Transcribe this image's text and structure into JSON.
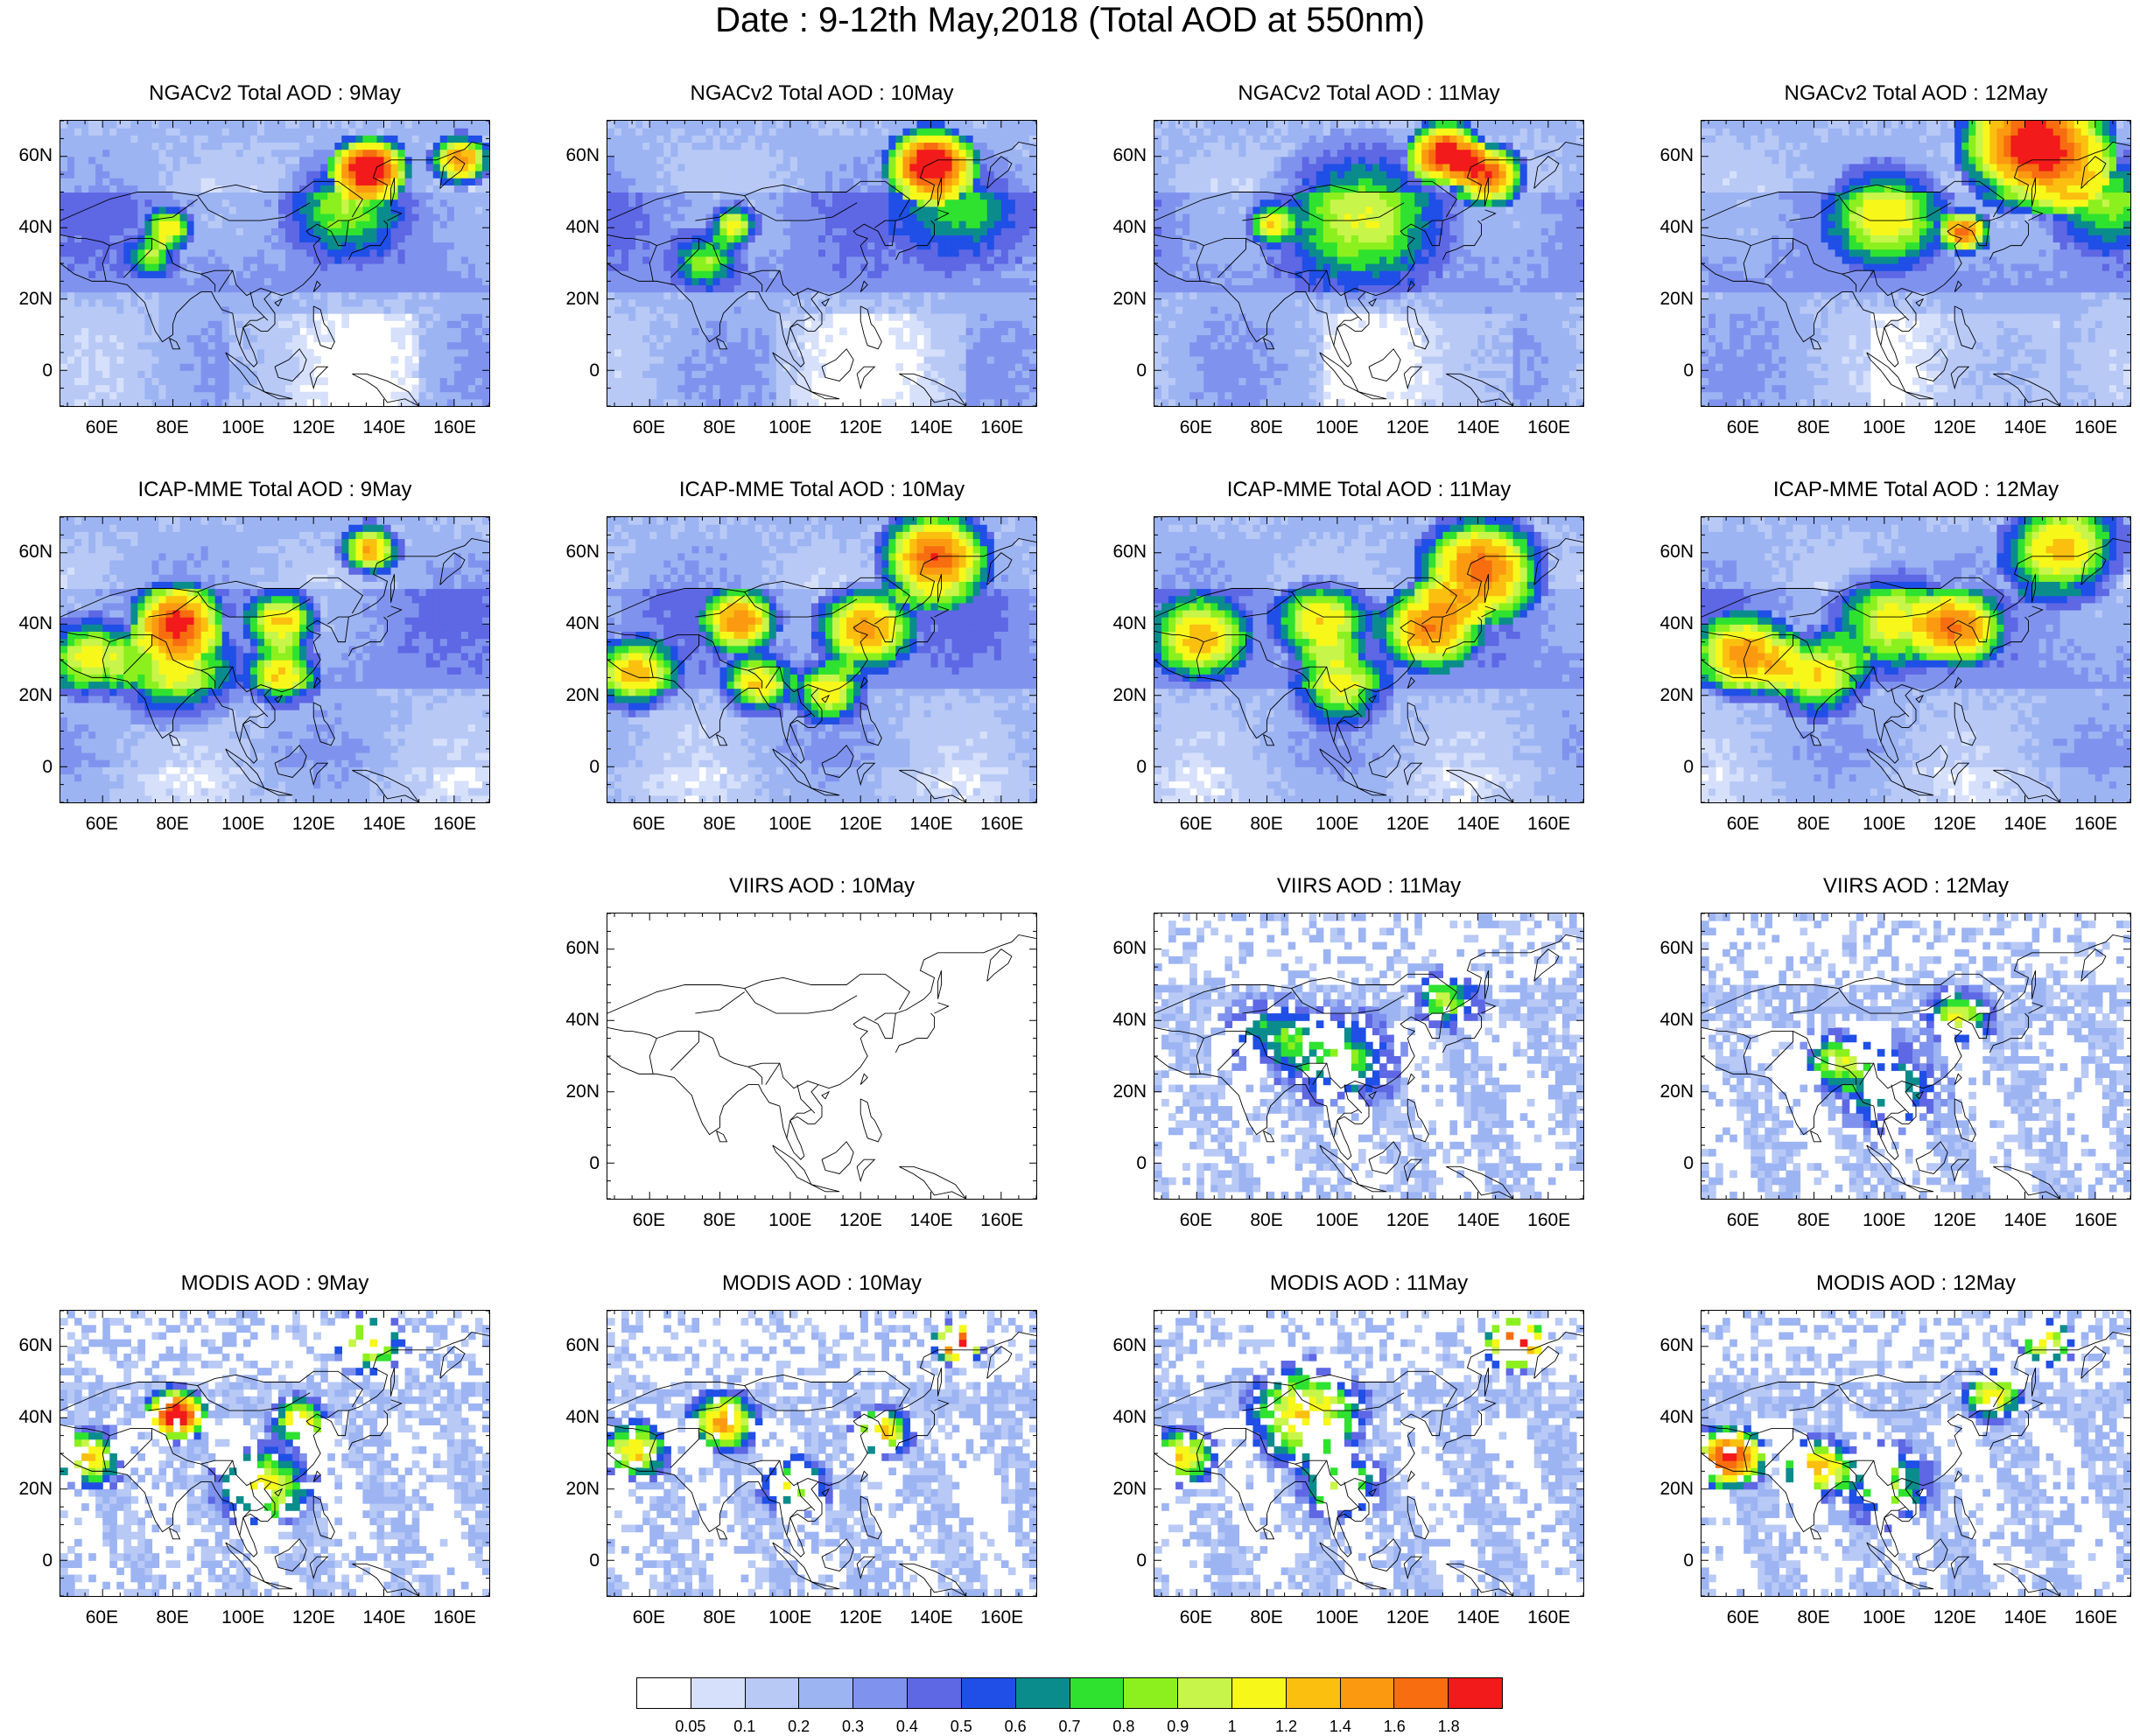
{
  "title": "Date : 9-12th May,2018 (Total AOD at 550nm)",
  "lat_ticks": [
    "60N",
    "40N",
    "20N",
    "0"
  ],
  "lon_ticks": [
    "60E",
    "80E",
    "100E",
    "120E",
    "140E",
    "160E"
  ],
  "map_extent": {
    "lon": [
      48,
      170
    ],
    "lat": [
      -10,
      70
    ]
  },
  "panels": [
    {
      "row": 0,
      "col": 0,
      "title": "NGACv2 Total AOD : 9May",
      "mode": "model",
      "variant": 0
    },
    {
      "row": 0,
      "col": 1,
      "title": "NGACv2 Total AOD : 10May",
      "mode": "model",
      "variant": 1
    },
    {
      "row": 0,
      "col": 2,
      "title": "NGACv2 Total AOD : 11May",
      "mode": "model",
      "variant": 2
    },
    {
      "row": 0,
      "col": 3,
      "title": "NGACv2 Total AOD : 12May",
      "mode": "model",
      "variant": 3
    },
    {
      "row": 1,
      "col": 0,
      "title": "ICAP-MME Total AOD : 9May",
      "mode": "model",
      "variant": 4
    },
    {
      "row": 1,
      "col": 1,
      "title": "ICAP-MME Total AOD : 10May",
      "mode": "model",
      "variant": 5
    },
    {
      "row": 1,
      "col": 2,
      "title": "ICAP-MME Total AOD : 11May",
      "mode": "model",
      "variant": 6
    },
    {
      "row": 1,
      "col": 3,
      "title": "ICAP-MME Total AOD : 12May",
      "mode": "model",
      "variant": 7
    },
    {
      "row": 2,
      "col": 1,
      "title": "VIIRS AOD : 10May",
      "mode": "empty",
      "variant": 8
    },
    {
      "row": 2,
      "col": 2,
      "title": "VIIRS AOD : 11May",
      "mode": "sat",
      "variant": 9
    },
    {
      "row": 2,
      "col": 3,
      "title": "VIIRS AOD : 12May",
      "mode": "sat",
      "variant": 10
    },
    {
      "row": 3,
      "col": 0,
      "title": "MODIS AOD : 9May",
      "mode": "sat",
      "variant": 11
    },
    {
      "row": 3,
      "col": 1,
      "title": "MODIS AOD : 10May",
      "mode": "sat",
      "variant": 12
    },
    {
      "row": 3,
      "col": 2,
      "title": "MODIS AOD : 11May",
      "mode": "sat",
      "variant": 13
    },
    {
      "row": 3,
      "col": 3,
      "title": "MODIS AOD : 12May",
      "mode": "sat",
      "variant": 14
    }
  ],
  "colorbar": {
    "labels": [
      "0.05",
      "0.1",
      "0.2",
      "0.3",
      "0.4",
      "0.5",
      "0.6",
      "0.7",
      "0.8",
      "0.9",
      "1",
      "1.2",
      "1.4",
      "1.6",
      "1.8"
    ],
    "colors": [
      "#ffffff",
      "#d6e0fb",
      "#b8c9f6",
      "#9db4f3",
      "#7f93ee",
      "#5e67e4",
      "#1f4fe6",
      "#0b8c8c",
      "#2fe22f",
      "#8cf01e",
      "#c8f54a",
      "#f7f71a",
      "#fbbf10",
      "#fb9a10",
      "#f76d10",
      "#f21a1a"
    ]
  },
  "hotspots": {
    "0": [
      [
        135,
        56,
        6,
        1.9
      ],
      [
        161,
        58,
        5,
        1.4
      ],
      [
        78,
        39,
        4,
        0.9
      ],
      [
        73,
        31,
        4,
        0.6
      ],
      [
        128,
        45,
        10,
        0.45
      ]
    ],
    "1": [
      [
        139,
        57,
        7,
        1.9
      ],
      [
        83,
        40,
        4,
        0.9
      ],
      [
        75,
        30,
        6,
        0.6
      ],
      [
        150,
        45,
        12,
        0.5
      ]
    ],
    "2": [
      [
        130,
        60,
        6,
        1.9
      ],
      [
        142,
        54,
        6,
        1.7
      ],
      [
        80,
        40,
        4,
        0.8
      ],
      [
        105,
        42,
        15,
        0.55
      ]
    ],
    "3": [
      [
        142,
        62,
        12,
        1.9
      ],
      [
        122,
        38,
        4,
        1.5
      ],
      [
        100,
        42,
        10,
        0.7
      ],
      [
        160,
        48,
        10,
        0.5
      ]
    ],
    "4": [
      [
        135,
        60,
        5,
        1.2
      ],
      [
        80,
        40,
        7,
        1.4
      ],
      [
        110,
        40,
        6,
        1.0
      ],
      [
        110,
        25,
        6,
        0.9
      ],
      [
        55,
        30,
        8,
        0.8
      ],
      [
        80,
        25,
        10,
        0.7
      ]
    ],
    "5": [
      [
        140,
        58,
        9,
        1.5
      ],
      [
        120,
        38,
        8,
        1.2
      ],
      [
        85,
        40,
        6,
        1.2
      ],
      [
        55,
        25,
        7,
        1.0
      ],
      [
        90,
        22,
        6,
        0.9
      ],
      [
        110,
        20,
        6,
        0.9
      ]
    ],
    "6": [
      [
        140,
        55,
        10,
        1.4
      ],
      [
        125,
        38,
        8,
        1.2
      ],
      [
        95,
        40,
        8,
        1.0
      ],
      [
        60,
        35,
        8,
        0.9
      ],
      [
        100,
        22,
        8,
        0.8
      ]
    ],
    "7": [
      [
        150,
        60,
        10,
        1.1
      ],
      [
        120,
        38,
        7,
        1.2
      ],
      [
        60,
        30,
        8,
        1.2
      ],
      [
        80,
        25,
        8,
        0.9
      ],
      [
        100,
        40,
        10,
        0.8
      ]
    ],
    "9": [
      [
        130,
        45,
        6,
        0.7
      ],
      [
        100,
        28,
        10,
        0.6
      ],
      [
        80,
        35,
        8,
        0.5
      ]
    ],
    "10": [
      [
        120,
        40,
        6,
        0.8
      ],
      [
        85,
        28,
        6,
        0.7
      ],
      [
        100,
        20,
        10,
        0.5
      ]
    ],
    "11": [
      [
        80,
        40,
        5,
        1.9
      ],
      [
        55,
        28,
        6,
        1.0
      ],
      [
        115,
        38,
        5,
        1.0
      ],
      [
        105,
        20,
        8,
        0.9
      ],
      [
        135,
        60,
        6,
        0.9
      ]
    ],
    "12": [
      [
        147,
        60,
        4,
        1.9
      ],
      [
        80,
        38,
        6,
        1.2
      ],
      [
        55,
        30,
        6,
        1.0
      ],
      [
        125,
        35,
        5,
        1.1
      ],
      [
        100,
        20,
        6,
        0.8
      ]
    ],
    "13": [
      [
        150,
        60,
        5,
        1.9
      ],
      [
        90,
        40,
        10,
        1.0
      ],
      [
        55,
        28,
        6,
        1.0
      ],
      [
        100,
        20,
        7,
        0.8
      ]
    ],
    "14": [
      [
        55,
        28,
        6,
        1.7
      ],
      [
        80,
        25,
        6,
        1.1
      ],
      [
        130,
        45,
        5,
        1.0
      ],
      [
        145,
        60,
        5,
        0.9
      ],
      [
        100,
        20,
        8,
        0.7
      ]
    ]
  }
}
